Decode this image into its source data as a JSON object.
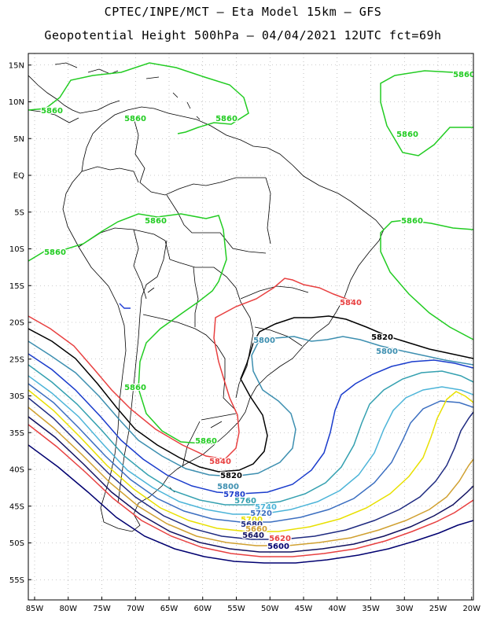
{
  "header": {
    "line1": "CPTEC/INPE/MCT –  Eta Model 15km – GFS",
    "line2": "Geopotential Height 500hPa – 04/04/2021 12UTC fct=69h"
  },
  "axes": {
    "lat_ticks": [
      "15N",
      "10N",
      "5N",
      "EQ",
      "5S",
      "10S",
      "15S",
      "20S",
      "25S",
      "30S",
      "35S",
      "40S",
      "45S",
      "50S",
      "55S"
    ],
    "lon_ticks": [
      "85W",
      "80W",
      "75W",
      "70W",
      "65W",
      "60W",
      "55W",
      "50W",
      "45W",
      "40W",
      "35W",
      "30W",
      "25W",
      "20W"
    ]
  },
  "chart_data": {
    "type": "contour",
    "variable": "500hPa geopotential height (m)",
    "lon_range": [
      -86,
      -20
    ],
    "lat_range": [
      -58,
      16
    ],
    "grid": true,
    "contours": [
      {
        "level": 5860,
        "label": "5860",
        "color": "#22cc22"
      },
      {
        "level": 5840,
        "label": "5840",
        "color": "#e84040"
      },
      {
        "level": 5820,
        "label": "5820",
        "color": "#000000"
      },
      {
        "level": 5800,
        "label": "5800",
        "color": "#3d8fb0"
      },
      {
        "level": 5780,
        "label": "5780",
        "color": "#1a3ccc"
      },
      {
        "level": 5760,
        "label": "5760",
        "color": "#34a0b0"
      },
      {
        "level": 5740,
        "label": "5740",
        "color": "#4cb4d8"
      },
      {
        "level": 5720,
        "label": "5720",
        "color": "#3b6ec0"
      },
      {
        "level": 5700,
        "label": "5700",
        "color": "#e8e000"
      },
      {
        "level": 5680,
        "label": "5680",
        "color": "#1e2a80"
      },
      {
        "level": 5660,
        "label": "5660",
        "color": "#d0a030"
      },
      {
        "level": 5640,
        "label": "5640",
        "color": "#101060"
      },
      {
        "level": 5620,
        "label": "5620",
        "color": "#e84040"
      },
      {
        "level": 5600,
        "label": "5600",
        "color": "#000070"
      }
    ]
  }
}
